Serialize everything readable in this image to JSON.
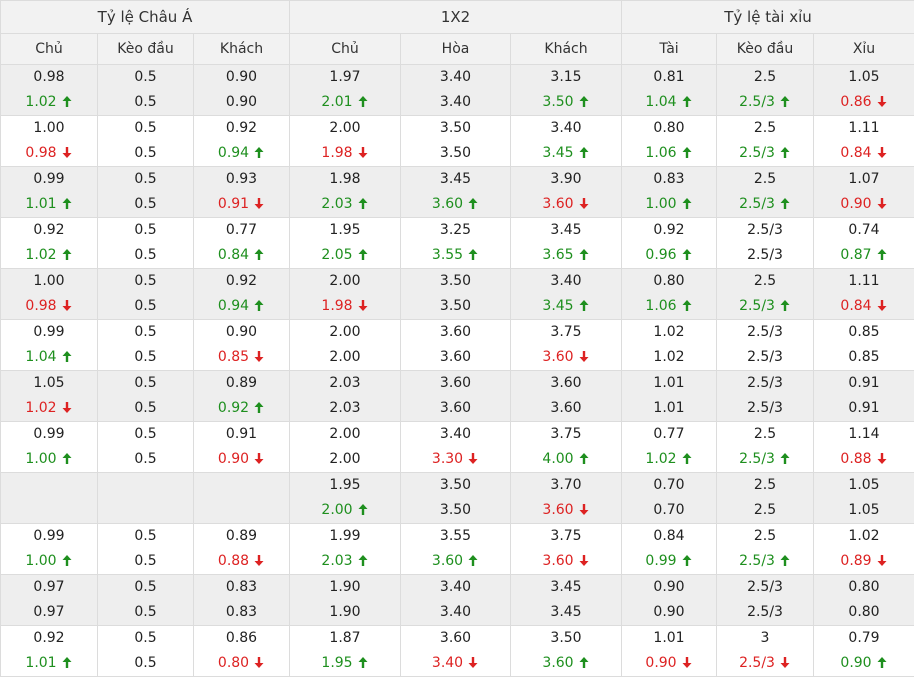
{
  "groups": [
    "Tỷ lệ Châu Á",
    "1X2",
    "Tỷ lệ tài xỉu"
  ],
  "columns": [
    "Chủ",
    "Kèo đầu",
    "Khách",
    "Chủ",
    "Hòa",
    "Khách",
    "Tài",
    "Kèo đầu",
    "Xỉu"
  ],
  "colors": {
    "up": "#1e8f1e",
    "down": "#dd2222",
    "header_bg": "#f2f2f2",
    "row_shade": "#eeeeee",
    "border": "#dcdcdc"
  },
  "icons": {
    "up": "arrow-up-icon",
    "down": "arrow-down-icon"
  },
  "rows": [
    {
      "shade": true,
      "cells": [
        [
          "0.98",
          [
            "1.02",
            "up"
          ]
        ],
        [
          "0.5",
          "0.5"
        ],
        [
          "0.90",
          "0.90"
        ],
        [
          "1.97",
          [
            "2.01",
            "up"
          ]
        ],
        [
          "3.40",
          "3.40"
        ],
        [
          "3.15",
          [
            "3.50",
            "up"
          ]
        ],
        [
          "0.81",
          [
            "1.04",
            "up"
          ]
        ],
        [
          "2.5",
          [
            "2.5/3",
            "up"
          ]
        ],
        [
          "1.05",
          [
            "0.86",
            "down"
          ]
        ]
      ]
    },
    {
      "shade": false,
      "cells": [
        [
          "1.00",
          [
            "0.98",
            "down"
          ]
        ],
        [
          "0.5",
          "0.5"
        ],
        [
          "0.92",
          [
            "0.94",
            "up"
          ]
        ],
        [
          "2.00",
          [
            "1.98",
            "down"
          ]
        ],
        [
          "3.50",
          "3.50"
        ],
        [
          "3.40",
          [
            "3.45",
            "up"
          ]
        ],
        [
          "0.80",
          [
            "1.06",
            "up"
          ]
        ],
        [
          "2.5",
          [
            "2.5/3",
            "up"
          ]
        ],
        [
          "1.11",
          [
            "0.84",
            "down"
          ]
        ]
      ]
    },
    {
      "shade": true,
      "cells": [
        [
          "0.99",
          [
            "1.01",
            "up"
          ]
        ],
        [
          "0.5",
          "0.5"
        ],
        [
          "0.93",
          [
            "0.91",
            "down"
          ]
        ],
        [
          "1.98",
          [
            "2.03",
            "up"
          ]
        ],
        [
          "3.45",
          [
            "3.60",
            "up"
          ]
        ],
        [
          "3.90",
          [
            "3.60",
            "down"
          ]
        ],
        [
          "0.83",
          [
            "1.00",
            "up"
          ]
        ],
        [
          "2.5",
          [
            "2.5/3",
            "up"
          ]
        ],
        [
          "1.07",
          [
            "0.90",
            "down"
          ]
        ]
      ]
    },
    {
      "shade": false,
      "cells": [
        [
          "0.92",
          [
            "1.02",
            "up"
          ]
        ],
        [
          "0.5",
          "0.5"
        ],
        [
          "0.77",
          [
            "0.84",
            "up"
          ]
        ],
        [
          "1.95",
          [
            "2.05",
            "up"
          ]
        ],
        [
          "3.25",
          [
            "3.55",
            "up"
          ]
        ],
        [
          "3.45",
          [
            "3.65",
            "up"
          ]
        ],
        [
          "0.92",
          [
            "0.96",
            "up"
          ]
        ],
        [
          "2.5/3",
          "2.5/3"
        ],
        [
          "0.74",
          [
            "0.87",
            "up"
          ]
        ]
      ]
    },
    {
      "shade": true,
      "cells": [
        [
          "1.00",
          [
            "0.98",
            "down"
          ]
        ],
        [
          "0.5",
          "0.5"
        ],
        [
          "0.92",
          [
            "0.94",
            "up"
          ]
        ],
        [
          "2.00",
          [
            "1.98",
            "down"
          ]
        ],
        [
          "3.50",
          "3.50"
        ],
        [
          "3.40",
          [
            "3.45",
            "up"
          ]
        ],
        [
          "0.80",
          [
            "1.06",
            "up"
          ]
        ],
        [
          "2.5",
          [
            "2.5/3",
            "up"
          ]
        ],
        [
          "1.11",
          [
            "0.84",
            "down"
          ]
        ]
      ]
    },
    {
      "shade": false,
      "cells": [
        [
          "0.99",
          [
            "1.04",
            "up"
          ]
        ],
        [
          "0.5",
          "0.5"
        ],
        [
          "0.90",
          [
            "0.85",
            "down"
          ]
        ],
        [
          "2.00",
          "2.00"
        ],
        [
          "3.60",
          "3.60"
        ],
        [
          "3.75",
          [
            "3.60",
            "down"
          ]
        ],
        [
          "1.02",
          "1.02"
        ],
        [
          "2.5/3",
          "2.5/3"
        ],
        [
          "0.85",
          "0.85"
        ]
      ]
    },
    {
      "shade": true,
      "cells": [
        [
          "1.05",
          [
            "1.02",
            "down"
          ]
        ],
        [
          "0.5",
          "0.5"
        ],
        [
          "0.89",
          [
            "0.92",
            "up"
          ]
        ],
        [
          "2.03",
          "2.03"
        ],
        [
          "3.60",
          "3.60"
        ],
        [
          "3.60",
          "3.60"
        ],
        [
          "1.01",
          "1.01"
        ],
        [
          "2.5/3",
          "2.5/3"
        ],
        [
          "0.91",
          "0.91"
        ]
      ]
    },
    {
      "shade": false,
      "cells": [
        [
          "0.99",
          [
            "1.00",
            "up"
          ]
        ],
        [
          "0.5",
          "0.5"
        ],
        [
          "0.91",
          [
            "0.90",
            "down"
          ]
        ],
        [
          "2.00",
          "2.00"
        ],
        [
          "3.40",
          [
            "3.30",
            "down"
          ]
        ],
        [
          "3.75",
          [
            "4.00",
            "up"
          ]
        ],
        [
          "0.77",
          [
            "1.02",
            "up"
          ]
        ],
        [
          "2.5",
          [
            "2.5/3",
            "up"
          ]
        ],
        [
          "1.14",
          [
            "0.88",
            "down"
          ]
        ]
      ]
    },
    {
      "shade": true,
      "cells": [
        [
          "",
          ""
        ],
        [
          "",
          ""
        ],
        [
          "",
          ""
        ],
        [
          "1.95",
          [
            "2.00",
            "up"
          ]
        ],
        [
          "3.50",
          "3.50"
        ],
        [
          "3.70",
          [
            "3.60",
            "down"
          ]
        ],
        [
          "0.70",
          "0.70"
        ],
        [
          "2.5",
          "2.5"
        ],
        [
          "1.05",
          "1.05"
        ]
      ]
    },
    {
      "shade": false,
      "cells": [
        [
          "0.99",
          [
            "1.00",
            "up"
          ]
        ],
        [
          "0.5",
          "0.5"
        ],
        [
          "0.89",
          [
            "0.88",
            "down"
          ]
        ],
        [
          "1.99",
          [
            "2.03",
            "up"
          ]
        ],
        [
          "3.55",
          [
            "3.60",
            "up"
          ]
        ],
        [
          "3.75",
          [
            "3.60",
            "down"
          ]
        ],
        [
          "0.84",
          [
            "0.99",
            "up"
          ]
        ],
        [
          "2.5",
          [
            "2.5/3",
            "up"
          ]
        ],
        [
          "1.02",
          [
            "0.89",
            "down"
          ]
        ]
      ]
    },
    {
      "shade": true,
      "cells": [
        [
          "0.97",
          "0.97"
        ],
        [
          "0.5",
          "0.5"
        ],
        [
          "0.83",
          "0.83"
        ],
        [
          "1.90",
          "1.90"
        ],
        [
          "3.40",
          "3.40"
        ],
        [
          "3.45",
          "3.45"
        ],
        [
          "0.90",
          "0.90"
        ],
        [
          "2.5/3",
          "2.5/3"
        ],
        [
          "0.80",
          "0.80"
        ]
      ]
    },
    {
      "shade": false,
      "cells": [
        [
          "0.92",
          [
            "1.01",
            "up"
          ]
        ],
        [
          "0.5",
          "0.5"
        ],
        [
          "0.86",
          [
            "0.80",
            "down"
          ]
        ],
        [
          "1.87",
          [
            "1.95",
            "up"
          ]
        ],
        [
          "3.60",
          [
            "3.40",
            "down"
          ]
        ],
        [
          "3.50",
          [
            "3.60",
            "up"
          ]
        ],
        [
          "1.01",
          [
            "0.90",
            "down"
          ]
        ],
        [
          "3",
          [
            "2.5/3",
            "down"
          ]
        ],
        [
          "0.79",
          [
            "0.90",
            "up"
          ]
        ]
      ]
    }
  ]
}
